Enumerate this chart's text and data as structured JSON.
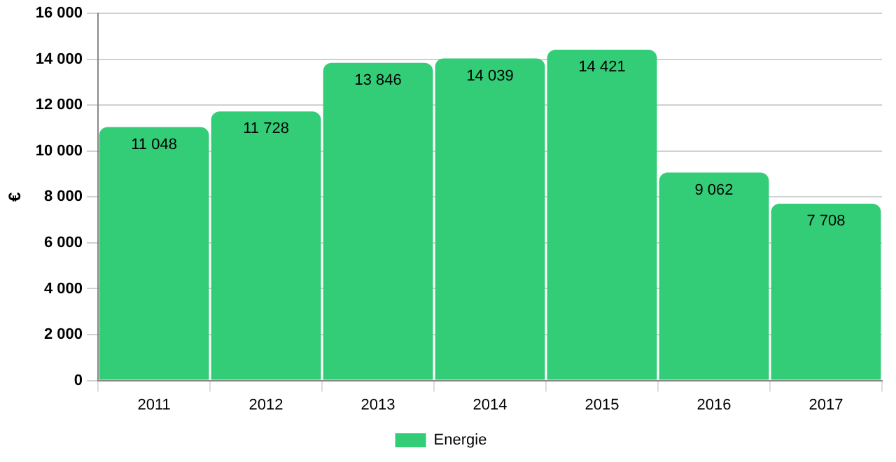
{
  "chart_data": {
    "type": "bar",
    "ylabel": "€",
    "categories": [
      "2011",
      "2012",
      "2013",
      "2014",
      "2015",
      "2016",
      "2017"
    ],
    "series": [
      {
        "name": "Energie",
        "color": "#33cc77",
        "values": [
          11048,
          11728,
          13846,
          14039,
          14421,
          9062,
          7708
        ],
        "value_labels": [
          "11 048",
          "11 728",
          "13 846",
          "14 039",
          "14 421",
          "9 062",
          "7 708"
        ]
      }
    ],
    "ylim": [
      0,
      16000
    ],
    "yticks": [
      {
        "value": 0,
        "label": "0"
      },
      {
        "value": 2000,
        "label": "2 000"
      },
      {
        "value": 4000,
        "label": "4 000"
      },
      {
        "value": 6000,
        "label": "6 000"
      },
      {
        "value": 8000,
        "label": "8 000"
      },
      {
        "value": 10000,
        "label": "10 000"
      },
      {
        "value": 12000,
        "label": "12 000"
      },
      {
        "value": 14000,
        "label": "14 000"
      },
      {
        "value": 16000,
        "label": "16 000"
      }
    ],
    "grid": "y",
    "legend": "bottom"
  }
}
